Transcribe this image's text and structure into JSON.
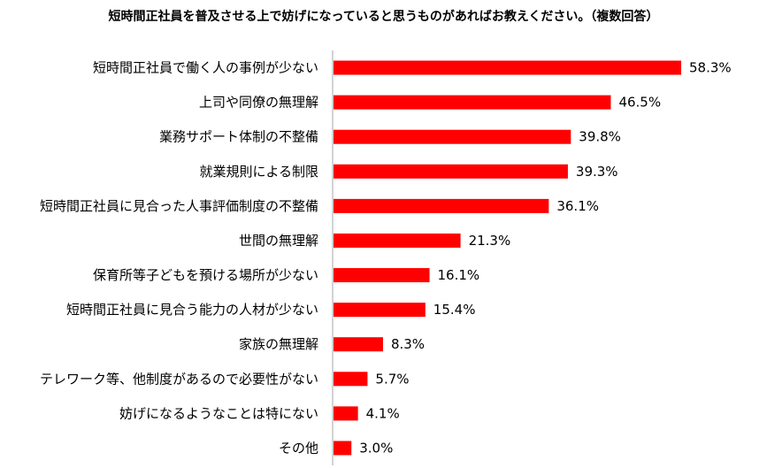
{
  "colors": {
    "bar": "#ff0000",
    "axis": "#a6a6a6",
    "text": "#000000"
  },
  "chart_data": {
    "type": "bar",
    "orientation": "horizontal",
    "title": "短時間正社員を普及させる上で妨げになっていると思うものがあればお教えください。（複数回答）",
    "xlim": [
      0,
      60
    ],
    "grid": false,
    "legend": "none",
    "value_suffix": "%",
    "categories": [
      "短時間正社員で働く人の事例が少ない",
      "上司や同僚の無理解",
      "業務サポート体制の不整備",
      "就業規則による制限",
      "短時間正社員に見合った人事評価制度の不整備",
      "世間の無理解",
      "保育所等子どもを預ける場所が少ない",
      "短時間正社員に見合う能力の人材が少ない",
      "家族の無理解",
      "テレワーク等、他制度があるので必要性がない",
      "妨げになるようなことは特にない",
      "その他"
    ],
    "values": [
      58.3,
      46.5,
      39.8,
      39.3,
      36.1,
      21.3,
      16.1,
      15.4,
      8.3,
      5.7,
      4.1,
      3.0
    ],
    "value_labels": [
      "58.3%",
      "46.5%",
      "39.8%",
      "39.3%",
      "36.1%",
      "21.3%",
      "16.1%",
      "15.4%",
      "8.3%",
      "5.7%",
      "4.1%",
      "3.0%"
    ]
  }
}
